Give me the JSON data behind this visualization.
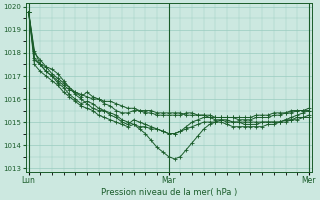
{
  "xlabel": "Pression niveau de la mer( hPa )",
  "ylim": [
    1013,
    1020
  ],
  "yticks": [
    1013,
    1014,
    1015,
    1016,
    1017,
    1018,
    1019,
    1020
  ],
  "xtick_labels": [
    "Lun",
    "Mar",
    "Mer"
  ],
  "xtick_positions": [
    0,
    48,
    96
  ],
  "bg_color": "#cce8e0",
  "grid_color": "#99ccc0",
  "line_color": "#1a5c2a",
  "series": [
    {
      "x": [
        0,
        2,
        4,
        6,
        8,
        10,
        12,
        14,
        16,
        18,
        20,
        22,
        24,
        26,
        28,
        30,
        32,
        34,
        36,
        38,
        40,
        42,
        44,
        46,
        48,
        50,
        52,
        54,
        56,
        58,
        60,
        62,
        64,
        66,
        68,
        70,
        72,
        74,
        76,
        78,
        80,
        82,
        84,
        86,
        88,
        90,
        92,
        94,
        96
      ],
      "y": [
        1019.8,
        1018.1,
        1017.5,
        1017.2,
        1017.0,
        1016.8,
        1016.6,
        1016.4,
        1016.3,
        1016.2,
        1016.1,
        1016.0,
        1016.0,
        1015.9,
        1015.9,
        1015.8,
        1015.7,
        1015.6,
        1015.6,
        1015.5,
        1015.5,
        1015.5,
        1015.4,
        1015.4,
        1015.4,
        1015.4,
        1015.4,
        1015.3,
        1015.3,
        1015.3,
        1015.3,
        1015.3,
        1015.2,
        1015.2,
        1015.2,
        1015.2,
        1015.2,
        1015.2,
        1015.2,
        1015.3,
        1015.3,
        1015.3,
        1015.4,
        1015.4,
        1015.4,
        1015.5,
        1015.5,
        1015.5,
        1015.5
      ]
    },
    {
      "x": [
        0,
        2,
        4,
        6,
        8,
        10,
        12,
        14,
        16,
        18,
        20,
        22,
        24,
        26,
        28,
        30,
        32,
        34,
        36,
        38,
        40,
        42,
        44,
        46,
        48,
        50,
        52,
        54,
        56,
        58,
        60,
        62,
        64,
        66,
        68,
        70,
        72,
        74,
        76,
        78,
        80,
        82,
        84,
        86,
        88,
        90,
        92,
        94,
        96
      ],
      "y": [
        1019.8,
        1017.8,
        1017.5,
        1017.4,
        1017.1,
        1016.9,
        1016.7,
        1016.5,
        1016.2,
        1016.0,
        1015.8,
        1015.6,
        1015.5,
        1015.5,
        1015.4,
        1015.3,
        1015.1,
        1015.0,
        1014.9,
        1014.7,
        1014.5,
        1014.2,
        1013.9,
        1013.7,
        1013.5,
        1013.4,
        1013.5,
        1013.8,
        1014.1,
        1014.4,
        1014.7,
        1014.9,
        1015.0,
        1015.1,
        1015.1,
        1015.0,
        1015.0,
        1015.0,
        1015.0,
        1015.0,
        1015.0,
        1015.0,
        1015.0,
        1015.0,
        1015.1,
        1015.2,
        1015.3,
        1015.4,
        1015.5
      ]
    },
    {
      "x": [
        0,
        2,
        4,
        6,
        8,
        10,
        12,
        14,
        16,
        18,
        20,
        22,
        24,
        26,
        28,
        30,
        32,
        34,
        36,
        38,
        40,
        42,
        44,
        46,
        48,
        50,
        52,
        54,
        56,
        58,
        60,
        62,
        64,
        66,
        68,
        70,
        72,
        74,
        76,
        78,
        80,
        82,
        84,
        86,
        88,
        90,
        92,
        94,
        96
      ],
      "y": [
        1019.8,
        1018.0,
        1017.7,
        1017.4,
        1017.3,
        1017.1,
        1016.8,
        1016.5,
        1016.3,
        1016.1,
        1016.3,
        1016.1,
        1016.0,
        1015.8,
        1015.7,
        1015.5,
        1015.4,
        1015.4,
        1015.5,
        1015.5,
        1015.4,
        1015.4,
        1015.3,
        1015.3,
        1015.3,
        1015.3,
        1015.3,
        1015.4,
        1015.4,
        1015.3,
        1015.3,
        1015.2,
        1015.2,
        1015.2,
        1015.2,
        1015.2,
        1015.1,
        1015.1,
        1015.1,
        1015.2,
        1015.2,
        1015.2,
        1015.3,
        1015.3,
        1015.4,
        1015.4,
        1015.5,
        1015.5,
        1015.6
      ]
    },
    {
      "x": [
        0,
        2,
        4,
        6,
        8,
        10,
        12,
        14,
        16,
        18,
        20,
        22,
        24,
        26,
        28,
        30,
        32,
        34,
        36,
        38,
        40,
        42,
        44,
        46,
        48,
        50,
        52,
        54,
        56,
        58,
        60,
        62,
        64,
        66,
        68,
        70,
        72,
        74,
        76,
        78,
        80,
        82,
        84,
        86,
        88,
        90,
        92,
        94,
        96
      ],
      "y": [
        1019.8,
        1017.5,
        1017.2,
        1017.0,
        1016.8,
        1016.6,
        1016.3,
        1016.1,
        1015.9,
        1015.7,
        1015.6,
        1015.5,
        1015.3,
        1015.2,
        1015.1,
        1015.0,
        1014.9,
        1014.8,
        1014.9,
        1014.8,
        1014.8,
        1014.7,
        1014.7,
        1014.6,
        1014.5,
        1014.5,
        1014.6,
        1014.7,
        1014.8,
        1014.9,
        1015.0,
        1015.0,
        1015.0,
        1015.0,
        1014.9,
        1014.8,
        1014.8,
        1014.8,
        1014.8,
        1014.8,
        1014.8,
        1014.9,
        1014.9,
        1015.0,
        1015.0,
        1015.1,
        1015.1,
        1015.2,
        1015.2
      ]
    },
    {
      "x": [
        0,
        2,
        4,
        6,
        8,
        10,
        12,
        14,
        16,
        18,
        20,
        22,
        24,
        26,
        28,
        30,
        32,
        34,
        36,
        38,
        40,
        42,
        44,
        46,
        48,
        50,
        52,
        54,
        56,
        58,
        60,
        62,
        64,
        66,
        68,
        70,
        72,
        74,
        76,
        78,
        80,
        82,
        84,
        86,
        88,
        90,
        92,
        94,
        96
      ],
      "y": [
        1019.8,
        1017.7,
        1017.5,
        1017.2,
        1017.0,
        1016.7,
        1016.5,
        1016.2,
        1016.0,
        1015.8,
        1015.9,
        1015.8,
        1015.6,
        1015.5,
        1015.3,
        1015.2,
        1015.0,
        1014.9,
        1015.1,
        1015.0,
        1014.9,
        1014.8,
        1014.7,
        1014.6,
        1014.5,
        1014.5,
        1014.6,
        1014.8,
        1015.0,
        1015.1,
        1015.2,
        1015.2,
        1015.1,
        1015.1,
        1015.0,
        1015.0,
        1015.0,
        1014.9,
        1014.9,
        1014.9,
        1015.0,
        1015.0,
        1015.0,
        1015.0,
        1015.1,
        1015.1,
        1015.2,
        1015.2,
        1015.3
      ]
    }
  ]
}
